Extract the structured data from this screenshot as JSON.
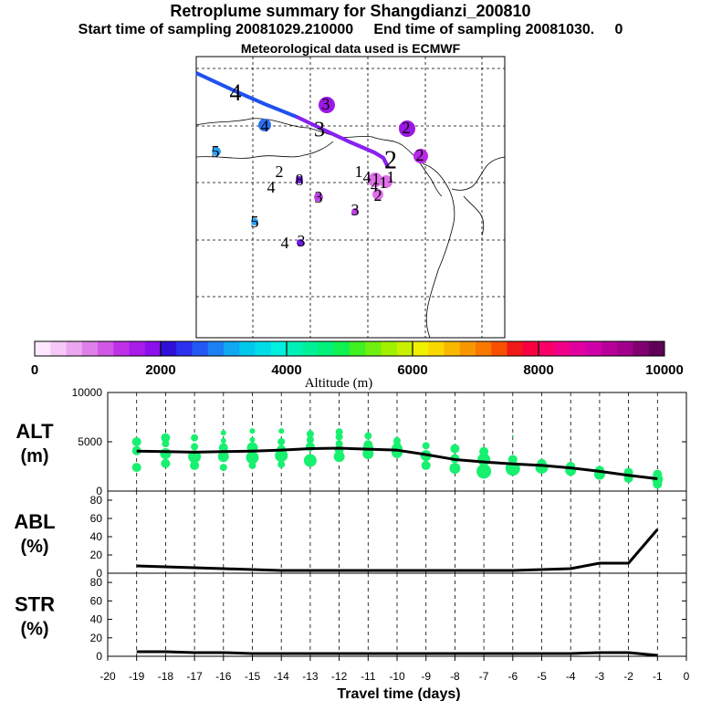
{
  "header": {
    "title": "Retroplume summary for Shangdianzi_200810",
    "subtitle": "Start time of sampling 20081029.210000     End time of sampling 20081030.     0",
    "met": "Meteorological data used is ECMWF"
  },
  "colorbar": {
    "label": "Altitude (m)",
    "ticks": [
      "0",
      "2000",
      "4000",
      "6000",
      "8000",
      "10000"
    ],
    "colors": [
      "#ffe8ff",
      "#f5c8f8",
      "#eba6f0",
      "#df80ea",
      "#d158e6",
      "#c030e8",
      "#a81ce8",
      "#8c10ec",
      "#3010d8",
      "#2c30f0",
      "#2458f4",
      "#1c80f4",
      "#10a8f0",
      "#00c8ec",
      "#00dce8",
      "#00f0e0",
      "#00f0b8",
      "#00f098",
      "#00f078",
      "#10f050",
      "#40f020",
      "#70f010",
      "#a0f000",
      "#c8f000",
      "#f0f000",
      "#f8d800",
      "#f8b800",
      "#f89800",
      "#f87800",
      "#f85000",
      "#f01818",
      "#f80040",
      "#f80068",
      "#f00088",
      "#e000a0",
      "#d000a8",
      "#b80098",
      "#a0008c",
      "#800070",
      "#600058"
    ]
  },
  "map": {
    "labels": [
      {
        "text": "4",
        "x": 258,
        "y": 104,
        "size": 26
      },
      {
        "text": "4",
        "x": 290,
        "y": 140,
        "size": 18
      },
      {
        "text": "3",
        "x": 350,
        "y": 144,
        "size": 24
      },
      {
        "text": "3",
        "x": 357,
        "y": 116,
        "size": 18
      },
      {
        "text": "2",
        "x": 445,
        "y": 142,
        "size": 18
      },
      {
        "text": "2",
        "x": 428,
        "y": 178,
        "size": 28
      },
      {
        "text": "2",
        "x": 460,
        "y": 172,
        "size": 18
      },
      {
        "text": "5",
        "x": 236,
        "y": 168,
        "size": 18
      },
      {
        "text": "2",
        "x": 306,
        "y": 190,
        "size": 18
      },
      {
        "text": "4",
        "x": 297,
        "y": 207,
        "size": 18
      },
      {
        "text": "8",
        "x": 328,
        "y": 199,
        "size": 18
      },
      {
        "text": "1",
        "x": 393,
        "y": 190,
        "size": 18
      },
      {
        "text": "4",
        "x": 402,
        "y": 196,
        "size": 18
      },
      {
        "text": "1",
        "x": 412,
        "y": 198,
        "size": 18
      },
      {
        "text": "1",
        "x": 420,
        "y": 202,
        "size": 18
      },
      {
        "text": "1",
        "x": 428,
        "y": 196,
        "size": 18
      },
      {
        "text": "4",
        "x": 410,
        "y": 206,
        "size": 16
      },
      {
        "text": "3",
        "x": 349,
        "y": 218,
        "size": 18
      },
      {
        "text": "2",
        "x": 414,
        "y": 216,
        "size": 18
      },
      {
        "text": "3",
        "x": 389,
        "y": 232,
        "size": 18
      },
      {
        "text": "5",
        "x": 279,
        "y": 245,
        "size": 18
      },
      {
        "text": "4",
        "x": 312,
        "y": 268,
        "size": 18
      },
      {
        "text": "3",
        "x": 330,
        "y": 266,
        "size": 18
      }
    ],
    "dots": [
      {
        "x": 358,
        "y": 115,
        "r": 9,
        "color": "#9a18e4"
      },
      {
        "x": 290,
        "y": 137,
        "r": 7,
        "color": "#2c6ef0"
      },
      {
        "x": 446,
        "y": 141,
        "r": 9,
        "color": "#9a18e4"
      },
      {
        "x": 461,
        "y": 171,
        "r": 8,
        "color": "#b828e8"
      },
      {
        "x": 237,
        "y": 166,
        "r": 5,
        "color": "#2c9ef0"
      },
      {
        "x": 328,
        "y": 197,
        "r": 4,
        "color": "#7018e8"
      },
      {
        "x": 411,
        "y": 197,
        "r": 8,
        "color": "#e070e8"
      },
      {
        "x": 423,
        "y": 199,
        "r": 7,
        "color": "#e070e8"
      },
      {
        "x": 414,
        "y": 213,
        "r": 6,
        "color": "#e070e8"
      },
      {
        "x": 349,
        "y": 216,
        "r": 5,
        "color": "#c040e8"
      },
      {
        "x": 389,
        "y": 232,
        "r": 4,
        "color": "#c040e8"
      },
      {
        "x": 279,
        "y": 243,
        "r": 4,
        "color": "#2c9ef0"
      },
      {
        "x": 329,
        "y": 266,
        "r": 4,
        "color": "#7018e8"
      }
    ]
  },
  "panels": [
    {
      "label": "ALT",
      "unit": "(m)",
      "ymin": 0,
      "ymax": 10000,
      "ticks": [
        "0",
        "5000",
        "10000"
      ],
      "tickvals": [
        0,
        5000,
        10000
      ]
    },
    {
      "label": "ABL",
      "unit": "(%)",
      "ymin": 0,
      "ymax": 90,
      "ticks": [
        "0",
        "20",
        "40",
        "60",
        "80"
      ],
      "tickvals": [
        0,
        20,
        40,
        60,
        80
      ]
    },
    {
      "label": "STR",
      "unit": "(%)",
      "ymin": 0,
      "ymax": 90,
      "ticks": [
        "0",
        "20",
        "40",
        "60",
        "80"
      ],
      "tickvals": [
        0,
        20,
        40,
        60,
        80
      ]
    }
  ],
  "chart_data": {
    "type": "line",
    "title": "Retroplume summary for Shangdianzi_200810",
    "xlabel": "Travel time (days)",
    "xlim": [
      -20,
      0
    ],
    "x_ticks": [
      "-20",
      "-19",
      "-18",
      "-17",
      "-16",
      "-15",
      "-14",
      "-13",
      "-12",
      "-11",
      "-10",
      "-9",
      "-8",
      "-7",
      "-6",
      "-5",
      "-4",
      "-3",
      "-2",
      "-1",
      "0"
    ],
    "x": [
      -19,
      -18,
      -17,
      -16,
      -15,
      -14,
      -13,
      -12,
      -11,
      -10,
      -9,
      -8,
      -7,
      -6,
      -5,
      -4,
      -3,
      -2,
      -1
    ],
    "series": [
      {
        "name": "ALT",
        "ylabel": "ALT (m)",
        "ylim": [
          0,
          10000
        ],
        "values": [
          4050,
          4000,
          3950,
          4000,
          4050,
          4150,
          4300,
          4350,
          4250,
          4150,
          3700,
          3200,
          2950,
          2750,
          2600,
          2350,
          2000,
          1600,
          1250
        ]
      },
      {
        "name": "ABL",
        "ylabel": "ABL (%)",
        "ylim": [
          0,
          90
        ],
        "values": [
          8,
          7,
          6,
          5,
          4,
          3,
          3,
          3,
          3,
          3,
          3,
          3,
          3,
          3,
          4,
          5,
          11,
          11,
          48
        ]
      },
      {
        "name": "STR",
        "ylabel": "STR (%)",
        "ylim": [
          0,
          90
        ],
        "values": [
          5,
          5,
          4,
          4,
          3,
          3,
          3,
          3,
          3,
          3,
          3,
          3,
          3,
          3,
          3,
          3,
          4,
          4,
          1
        ]
      }
    ],
    "alt_clusters": [
      {
        "x": -19,
        "points": [
          {
            "alt": 5000,
            "size": 5
          },
          {
            "alt": 4100,
            "size": 5
          },
          {
            "alt": 2400,
            "size": 5
          }
        ]
      },
      {
        "x": -18,
        "points": [
          {
            "alt": 5400,
            "size": 5
          },
          {
            "alt": 4800,
            "size": 4
          },
          {
            "alt": 3800,
            "size": 6
          },
          {
            "alt": 2800,
            "size": 5
          }
        ]
      },
      {
        "x": -17,
        "points": [
          {
            "alt": 5400,
            "size": 4
          },
          {
            "alt": 4500,
            "size": 4
          },
          {
            "alt": 3500,
            "size": 7
          },
          {
            "alt": 2600,
            "size": 5
          }
        ]
      },
      {
        "x": -16,
        "points": [
          {
            "alt": 5900,
            "size": 3
          },
          {
            "alt": 5100,
            "size": 3
          },
          {
            "alt": 4400,
            "size": 5
          },
          {
            "alt": 3500,
            "size": 6
          },
          {
            "alt": 2400,
            "size": 4
          }
        ]
      },
      {
        "x": -15,
        "points": [
          {
            "alt": 6100,
            "size": 3
          },
          {
            "alt": 5200,
            "size": 3
          },
          {
            "alt": 4400,
            "size": 6
          },
          {
            "alt": 3400,
            "size": 7
          },
          {
            "alt": 2600,
            "size": 4
          }
        ]
      },
      {
        "x": -14,
        "points": [
          {
            "alt": 6100,
            "size": 3
          },
          {
            "alt": 5000,
            "size": 4
          },
          {
            "alt": 4200,
            "size": 5
          },
          {
            "alt": 3600,
            "size": 7
          },
          {
            "alt": 2700,
            "size": 4
          }
        ]
      },
      {
        "x": -13,
        "points": [
          {
            "alt": 5800,
            "size": 4
          },
          {
            "alt": 5200,
            "size": 4
          },
          {
            "alt": 4500,
            "size": 5
          },
          {
            "alt": 3100,
            "size": 7
          }
        ]
      },
      {
        "x": -12,
        "points": [
          {
            "alt": 6000,
            "size": 4
          },
          {
            "alt": 5500,
            "size": 4
          },
          {
            "alt": 4800,
            "size": 4
          },
          {
            "alt": 4200,
            "size": 5
          },
          {
            "alt": 3500,
            "size": 6
          }
        ]
      },
      {
        "x": -11,
        "points": [
          {
            "alt": 5600,
            "size": 4
          },
          {
            "alt": 4700,
            "size": 5
          },
          {
            "alt": 4300,
            "size": 6
          },
          {
            "alt": 3800,
            "size": 6
          }
        ]
      },
      {
        "x": -10,
        "points": [
          {
            "alt": 5100,
            "size": 4
          },
          {
            "alt": 4700,
            "size": 4
          },
          {
            "alt": 4300,
            "size": 6
          },
          {
            "alt": 3900,
            "size": 6
          }
        ]
      },
      {
        "x": -9,
        "points": [
          {
            "alt": 4600,
            "size": 4
          },
          {
            "alt": 3600,
            "size": 6
          },
          {
            "alt": 2600,
            "size": 5
          }
        ]
      },
      {
        "x": -8,
        "points": [
          {
            "alt": 4300,
            "size": 5
          },
          {
            "alt": 3300,
            "size": 5
          },
          {
            "alt": 2300,
            "size": 6
          }
        ]
      },
      {
        "x": -7,
        "points": [
          {
            "alt": 4000,
            "size": 5
          },
          {
            "alt": 3200,
            "size": 7
          },
          {
            "alt": 2000,
            "size": 8
          }
        ]
      },
      {
        "x": -6,
        "points": [
          {
            "alt": 5600,
            "size": 1
          },
          {
            "alt": 3200,
            "size": 5
          },
          {
            "alt": 2300,
            "size": 8
          }
        ]
      },
      {
        "x": -5,
        "points": [
          {
            "alt": 2800,
            "size": 5
          },
          {
            "alt": 2400,
            "size": 7
          }
        ]
      },
      {
        "x": -4,
        "points": [
          {
            "alt": 2500,
            "size": 5
          },
          {
            "alt": 2100,
            "size": 6
          }
        ]
      },
      {
        "x": -3,
        "points": [
          {
            "alt": 2100,
            "size": 5
          },
          {
            "alt": 1700,
            "size": 6
          }
        ]
      },
      {
        "x": -2,
        "points": [
          {
            "alt": 1900,
            "size": 5
          },
          {
            "alt": 1300,
            "size": 5
          }
        ]
      },
      {
        "x": -1,
        "points": [
          {
            "alt": 1700,
            "size": 5
          },
          {
            "alt": 1200,
            "size": 6
          },
          {
            "alt": 700,
            "size": 5
          }
        ]
      }
    ]
  }
}
